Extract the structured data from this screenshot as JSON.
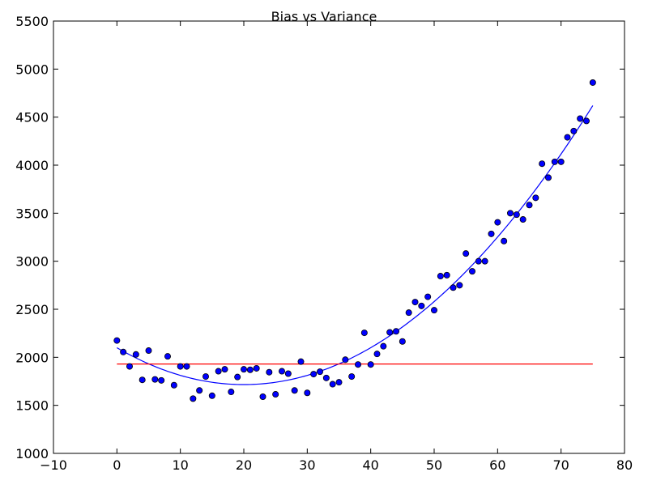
{
  "chart_data": {
    "type": "scatter",
    "title": "Bias vs Variance",
    "xlabel": "",
    "ylabel": "",
    "xlim": [
      -10,
      80
    ],
    "ylim": [
      1000,
      5500
    ],
    "xticks": [
      -10,
      0,
      10,
      20,
      30,
      40,
      50,
      60,
      70,
      80
    ],
    "yticks": [
      1000,
      1500,
      2000,
      2500,
      3000,
      3500,
      4000,
      4500,
      5000,
      5500
    ],
    "xtick_labels": [
      "−10",
      "0",
      "10",
      "20",
      "30",
      "40",
      "50",
      "60",
      "70",
      "80"
    ],
    "ytick_labels": [
      "1000",
      "1500",
      "2000",
      "2500",
      "3000",
      "3500",
      "4000",
      "4500",
      "5000",
      "5500"
    ],
    "grid": false,
    "legend": "none",
    "series": [
      {
        "kind": "scatter",
        "color": "#0000ff",
        "points": [
          [
            0,
            2175
          ],
          [
            1,
            2055
          ],
          [
            2,
            1905
          ],
          [
            3,
            2030
          ],
          [
            4,
            1765
          ],
          [
            5,
            2070
          ],
          [
            6,
            1770
          ],
          [
            7,
            1760
          ],
          [
            8,
            2010
          ],
          [
            9,
            1710
          ],
          [
            10,
            1905
          ],
          [
            11,
            1905
          ],
          [
            12,
            1570
          ],
          [
            13,
            1655
          ],
          [
            14,
            1800
          ],
          [
            15,
            1600
          ],
          [
            16,
            1855
          ],
          [
            17,
            1875
          ],
          [
            18,
            1640
          ],
          [
            19,
            1795
          ],
          [
            20,
            1875
          ],
          [
            21,
            1870
          ],
          [
            22,
            1885
          ],
          [
            23,
            1590
          ],
          [
            24,
            1845
          ],
          [
            25,
            1615
          ],
          [
            26,
            1855
          ],
          [
            27,
            1830
          ],
          [
            28,
            1655
          ],
          [
            29,
            1955
          ],
          [
            30,
            1630
          ],
          [
            31,
            1825
          ],
          [
            32,
            1850
          ],
          [
            33,
            1785
          ],
          [
            34,
            1720
          ],
          [
            35,
            1740
          ],
          [
            36,
            1975
          ],
          [
            37,
            1800
          ],
          [
            38,
            1925
          ],
          [
            39,
            2255
          ],
          [
            40,
            1925
          ],
          [
            41,
            2035
          ],
          [
            42,
            2115
          ],
          [
            43,
            2260
          ],
          [
            44,
            2270
          ],
          [
            45,
            2165
          ],
          [
            46,
            2465
          ],
          [
            47,
            2575
          ],
          [
            48,
            2535
          ],
          [
            49,
            2630
          ],
          [
            50,
            2490
          ],
          [
            51,
            2845
          ],
          [
            52,
            2855
          ],
          [
            53,
            2725
          ],
          [
            54,
            2750
          ],
          [
            55,
            3080
          ],
          [
            56,
            2895
          ],
          [
            57,
            3000
          ],
          [
            58,
            3000
          ],
          [
            59,
            3285
          ],
          [
            60,
            3405
          ],
          [
            61,
            3210
          ],
          [
            62,
            3500
          ],
          [
            63,
            3485
          ],
          [
            64,
            3435
          ],
          [
            65,
            3585
          ],
          [
            66,
            3660
          ],
          [
            67,
            4015
          ],
          [
            68,
            3870
          ],
          [
            69,
            4035
          ],
          [
            70,
            4035
          ],
          [
            71,
            4290
          ],
          [
            72,
            4355
          ],
          [
            73,
            4485
          ],
          [
            74,
            4460
          ],
          [
            75,
            4860
          ]
        ]
      },
      {
        "kind": "line",
        "color": "#0000ff",
        "polynomial": [
          2100,
          -38.4,
          0.96
        ],
        "x_range": [
          0,
          75
        ]
      },
      {
        "kind": "line",
        "color": "#ff0000",
        "constant": 1930,
        "x_range": [
          0,
          75
        ]
      }
    ]
  }
}
